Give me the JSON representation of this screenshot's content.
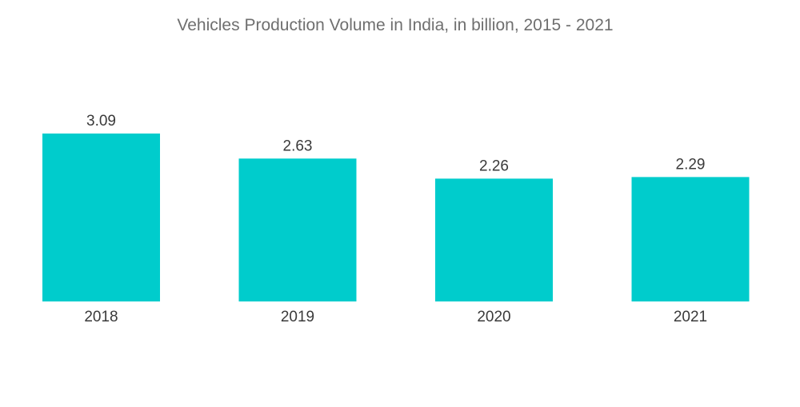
{
  "chart_data": {
    "type": "bar",
    "title": "Vehicles Production Volume in India, in billion, 2015 - 2021",
    "categories": [
      "2018",
      "2019",
      "2020",
      "2021"
    ],
    "values": [
      3.09,
      2.63,
      2.26,
      2.29
    ],
    "value_labels": [
      "3.09",
      "2.63",
      "2.26",
      "2.29"
    ],
    "xlabel": "",
    "ylabel": "",
    "ylim": [
      0,
      3.09
    ],
    "grid": false,
    "legend": "none",
    "bar_color": "#00CCCC"
  }
}
